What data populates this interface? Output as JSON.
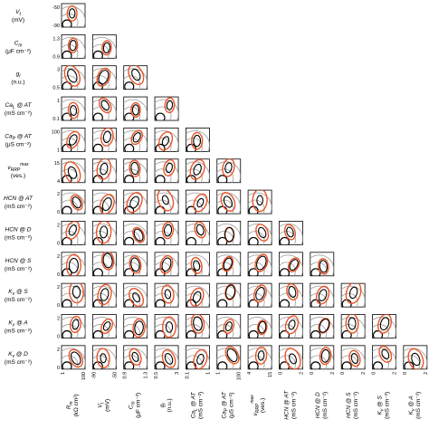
{
  "chart_data": {
    "type": "corner-plot",
    "description_note": "",
    "parameters": [
      {
        "label": "V_t",
        "symbol": "V",
        "sub": "t",
        "unit": "(mV)",
        "lim": [
          "-90",
          "-50"
        ]
      },
      {
        "label": "C_m",
        "symbol": "C",
        "sub": "m",
        "unit": "(μF cm⁻²)",
        "lim": [
          "0.9",
          "1.3"
        ]
      },
      {
        "label": "g_l",
        "symbol": "g",
        "sub": "l",
        "unit": "(n.u.)",
        "lim": [
          "0.5",
          "3"
        ]
      },
      {
        "label": "Ca_L @ AT",
        "symbol": "Ca",
        "sub": "L",
        "suffix": " @ AT",
        "unit": "(mS cm⁻²)",
        "lim": [
          "0.1",
          "1"
        ]
      },
      {
        "label": "Ca_P @ AT",
        "symbol": "Ca",
        "sub": "P",
        "suffix": " @ AT",
        "unit": "(μS cm⁻²)",
        "lim": [
          "1",
          "100"
        ]
      },
      {
        "label": "v_RRP^max",
        "symbol": "v",
        "sub": "RRP",
        "sup": "max",
        "unit": "(ves.)",
        "lim": [
          "4",
          "15"
        ]
      },
      {
        "label": "HCN @ AT",
        "symbol": "HCN",
        "suffix": " @ AT",
        "unit": "(mS cm⁻²)",
        "lim": [
          "0",
          "2"
        ]
      },
      {
        "label": "HCN @ D",
        "symbol": "HCN",
        "suffix": " @ D",
        "unit": "(mS cm⁻²)",
        "lim": [
          "0",
          "2"
        ]
      },
      {
        "label": "HCN @ S",
        "symbol": "HCN",
        "suffix": " @ S",
        "unit": "(mS cm⁻²)",
        "lim": [
          "0",
          "2"
        ]
      },
      {
        "label": "K_v @ S",
        "symbol": "K",
        "sub": "v",
        "suffix": " @ S",
        "unit": "(mS cm⁻²)",
        "lim": [
          "0",
          "2"
        ]
      },
      {
        "label": "K_v @ A",
        "symbol": "K",
        "sub": "v",
        "suffix": " @ A",
        "unit": "(mS cm⁻²)",
        "lim": [
          "0",
          "2"
        ]
      },
      {
        "label": "K_v @ D",
        "symbol": "K",
        "sub": "v",
        "suffix": " @ D",
        "unit": "(mS cm⁻²)",
        "lim": [
          "0",
          "2"
        ]
      }
    ],
    "x_parameters": [
      {
        "label": "R_m",
        "symbol": "R",
        "sub": "m",
        "unit": "(kΩ cm²)",
        "lim": [
          "1",
          "100"
        ]
      },
      {
        "label": "V_t",
        "symbol": "V",
        "sub": "t",
        "unit": "(mV)",
        "lim": [
          "-90",
          "-50"
        ]
      },
      {
        "label": "C_m",
        "symbol": "C",
        "sub": "m",
        "unit": "(μF cm⁻²)",
        "lim": [
          "0.9",
          "1.3"
        ]
      },
      {
        "label": "g_l",
        "symbol": "g",
        "sub": "l",
        "unit": "(n.u.)",
        "lim": [
          "0.5",
          "3"
        ]
      },
      {
        "label": "Ca_L @ AT",
        "symbol": "Ca",
        "sub": "L",
        "suffix": " @ AT",
        "unit": "(mS cm⁻²)",
        "lim": [
          "0.1",
          "1"
        ]
      },
      {
        "label": "Ca_P @ AT",
        "symbol": "Ca",
        "sub": "P",
        "suffix": " @ AT",
        "unit": "(μS cm⁻²)",
        "lim": [
          "1",
          "100"
        ]
      },
      {
        "label": "v_RRP^max",
        "symbol": "v",
        "sub": "RRP",
        "sup": "max",
        "unit": "(ves.)",
        "lim": [
          "4",
          "15"
        ]
      },
      {
        "label": "HCN @ AT",
        "symbol": "HCN",
        "suffix": " @ AT",
        "unit": "(mS cm⁻²)",
        "lim": [
          "0",
          "2"
        ]
      },
      {
        "label": "HCN @ D",
        "symbol": "HCN",
        "suffix": " @ D",
        "unit": "(mS cm⁻²)",
        "lim": [
          "0",
          "2"
        ]
      },
      {
        "label": "HCN @ S",
        "symbol": "HCN",
        "suffix": " @ S",
        "unit": "(mS cm⁻²)",
        "lim": [
          "0",
          "2"
        ]
      },
      {
        "label": "K_v @ S",
        "symbol": "K",
        "sub": "v",
        "suffix": " @ S",
        "unit": "(mS cm⁻²)",
        "lim": [
          "0",
          "2"
        ]
      },
      {
        "label": "K_v @ A",
        "symbol": "K",
        "sub": "v",
        "suffix": " @ A",
        "unit": "(mS cm⁻²)",
        "lim": [
          "0",
          "2"
        ]
      }
    ],
    "colors": {
      "posterior_outer": "#e8562a",
      "posterior_inner": "#000000",
      "prior": "#a6a6a6",
      "frame": "#000000"
    }
  }
}
